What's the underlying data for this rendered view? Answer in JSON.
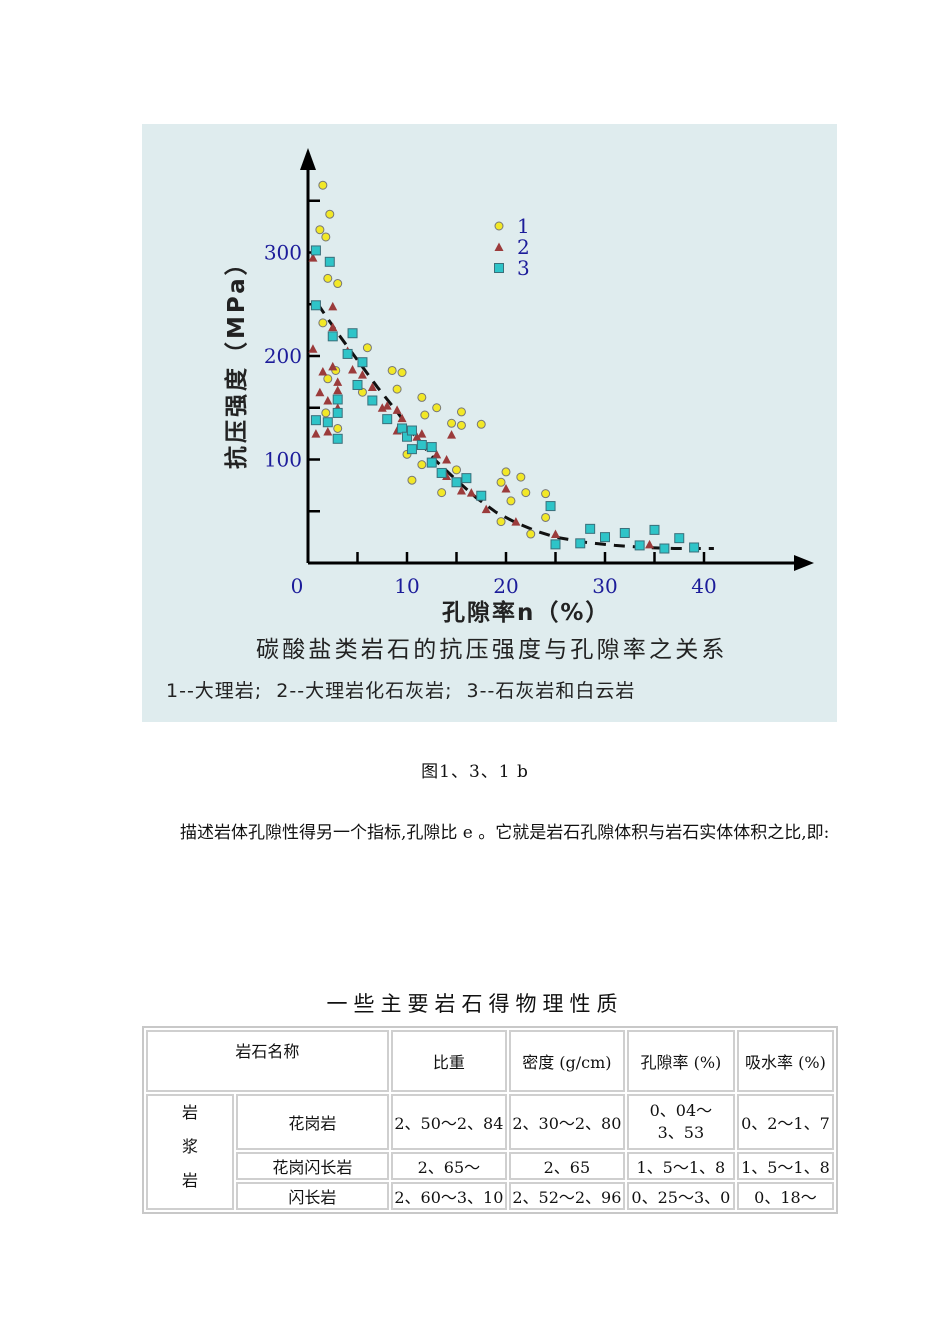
{
  "figure": {
    "y_axis_label": "抗压强度（MPa）",
    "x_axis_label": "孔隙率n（%）",
    "title": "碳酸盐类岩石的抗压强度与孔隙率之关系",
    "legend_caption": "1--大理岩;  2--大理岩化石灰岩;  3--石灰岩和白云岩",
    "legend": [
      {
        "label": "1",
        "marker": "circle",
        "color": "#f2e827"
      },
      {
        "label": "2",
        "marker": "triangle",
        "color": "#9b3b3b"
      },
      {
        "label": "3",
        "marker": "square",
        "color": "#2ec4c8"
      }
    ],
    "y_ticks": [
      "100",
      "200",
      "300"
    ],
    "x_ticks": [
      "0",
      "10",
      "20",
      "30",
      "40"
    ]
  },
  "chart_data": {
    "type": "scatter",
    "title": "碳酸盐类岩石的抗压强度与孔隙率之关系",
    "xlabel": "孔隙率n（%）",
    "ylabel": "抗压强度（MPa）",
    "xlim": [
      0,
      48
    ],
    "ylim": [
      0,
      380
    ],
    "x_ticks": [
      0,
      10,
      20,
      30,
      40
    ],
    "y_ticks": [
      100,
      200,
      300
    ],
    "grid": false,
    "legend_position": "upper-middle",
    "series": [
      {
        "name": "1 大理岩",
        "marker": "circle",
        "color": "#f2e827",
        "points": [
          [
            1.5,
            365
          ],
          [
            1.2,
            322
          ],
          [
            2.2,
            337
          ],
          [
            1.8,
            315
          ],
          [
            2.0,
            275
          ],
          [
            3.0,
            270
          ],
          [
            1.5,
            232
          ],
          [
            2.8,
            186
          ],
          [
            2.0,
            178
          ],
          [
            1.8,
            145
          ],
          [
            3.0,
            130
          ],
          [
            6.0,
            208
          ],
          [
            5.5,
            165
          ],
          [
            8.5,
            186
          ],
          [
            9.5,
            184
          ],
          [
            9.0,
            168
          ],
          [
            11.5,
            160
          ],
          [
            11.8,
            143
          ],
          [
            13,
            150
          ],
          [
            14.5,
            135
          ],
          [
            15.5,
            146
          ],
          [
            15.5,
            133
          ],
          [
            17.5,
            134
          ],
          [
            10,
            105
          ],
          [
            11.5,
            95
          ],
          [
            10.5,
            80
          ],
          [
            13.5,
            68
          ],
          [
            15,
            90
          ],
          [
            19.5,
            78
          ],
          [
            20,
            88
          ],
          [
            21.5,
            83
          ],
          [
            20.5,
            60
          ],
          [
            22,
            68
          ],
          [
            24,
            67
          ],
          [
            24,
            44
          ],
          [
            19.5,
            40
          ],
          [
            22.5,
            28
          ]
        ]
      },
      {
        "name": "2 大理岩化石灰岩",
        "marker": "triangle",
        "color": "#9b3b3b",
        "points": [
          [
            0.5,
            295
          ],
          [
            2.5,
            248
          ],
          [
            2.5,
            228
          ],
          [
            0.5,
            207
          ],
          [
            1.5,
            185
          ],
          [
            2.5,
            190
          ],
          [
            3,
            175
          ],
          [
            1.2,
            165
          ],
          [
            3,
            167
          ],
          [
            2,
            157
          ],
          [
            3,
            150
          ],
          [
            0.8,
            125
          ],
          [
            2,
            127
          ],
          [
            4,
            205
          ],
          [
            4.5,
            187
          ],
          [
            5.5,
            182
          ],
          [
            6.5,
            170
          ],
          [
            7.5,
            150
          ],
          [
            8,
            152
          ],
          [
            9,
            148
          ],
          [
            9.5,
            140
          ],
          [
            9,
            128
          ],
          [
            11,
            122
          ],
          [
            11.5,
            125
          ],
          [
            13,
            105
          ],
          [
            14,
            100
          ],
          [
            14.5,
            124
          ],
          [
            14,
            84
          ],
          [
            15.5,
            70
          ],
          [
            16.5,
            68
          ],
          [
            18,
            52
          ],
          [
            20,
            72
          ],
          [
            21,
            40
          ],
          [
            25,
            28
          ],
          [
            34.5,
            18
          ]
        ]
      },
      {
        "name": "3 石灰岩和白云岩",
        "marker": "square",
        "color": "#2ec4c8",
        "points": [
          [
            0.8,
            302
          ],
          [
            2.2,
            291
          ],
          [
            0.8,
            249
          ],
          [
            2.5,
            219
          ],
          [
            4.5,
            222
          ],
          [
            4,
            202
          ],
          [
            5.5,
            194
          ],
          [
            5,
            172
          ],
          [
            6.5,
            157
          ],
          [
            3,
            158
          ],
          [
            3,
            145
          ],
          [
            0.8,
            138
          ],
          [
            2,
            136
          ],
          [
            3,
            120
          ],
          [
            8,
            139
          ],
          [
            9.5,
            130
          ],
          [
            10,
            122
          ],
          [
            10.5,
            128
          ],
          [
            10.5,
            110
          ],
          [
            11.5,
            114
          ],
          [
            12.5,
            112
          ],
          [
            12.5,
            97
          ],
          [
            13.5,
            87
          ],
          [
            15,
            78
          ],
          [
            16,
            82
          ],
          [
            17.5,
            65
          ],
          [
            24.5,
            55
          ],
          [
            25,
            18
          ],
          [
            27.5,
            19
          ],
          [
            28.5,
            33
          ],
          [
            30,
            25
          ],
          [
            32,
            29
          ],
          [
            33.5,
            17
          ],
          [
            35,
            32
          ],
          [
            36,
            14
          ],
          [
            37.5,
            24
          ],
          [
            39,
            15
          ]
        ]
      },
      {
        "name": "trend",
        "type": "line",
        "style": "dashed",
        "color": "#111111",
        "points": [
          [
            1,
            250
          ],
          [
            3,
            222
          ],
          [
            5,
            196
          ],
          [
            7,
            170
          ],
          [
            9,
            146
          ],
          [
            11,
            120
          ],
          [
            13,
            98
          ],
          [
            15,
            80
          ],
          [
            17,
            63
          ],
          [
            19,
            49
          ],
          [
            21,
            39
          ],
          [
            23,
            31
          ],
          [
            25,
            25
          ],
          [
            28,
            20
          ],
          [
            31,
            17
          ],
          [
            34,
            15
          ],
          [
            37,
            14
          ],
          [
            41,
            14
          ]
        ]
      }
    ]
  },
  "figure_caption": "图1、3、1 b",
  "paragraph": "描述岩体孔隙性得另一个指标,孔隙比 e 。它就是岩石孔隙体积与岩石实体体积之比,即:",
  "table": {
    "title": "一些主要岩石得物理性质",
    "headers": {
      "name": "岩石名称",
      "specific_gravity": "比重",
      "density": "密度 (g/cm)",
      "porosity": "孔隙率 (%)",
      "absorption": "吸水率 (%)"
    },
    "group": "岩浆岩",
    "group_chars": [
      "岩",
      "浆",
      "岩"
    ],
    "rows": [
      {
        "name": "花岗岩",
        "specific_gravity": "2、50～2、84",
        "density": "2、30～2、80",
        "porosity": "0、04～3、53",
        "porosity_line1": "0、04～",
        "porosity_line2": "3、53",
        "absorption": "0、2～1、7"
      },
      {
        "name": "花岗闪长岩",
        "specific_gravity": "2、65～",
        "density": "2、65",
        "porosity": "1、5～1、8",
        "absorption": "1、5～1、8"
      },
      {
        "name": "闪长岩",
        "specific_gravity": "2、60～3、10",
        "density": "2、52～2、96",
        "porosity": "0、25～3、0",
        "absorption": "0、18～"
      }
    ]
  }
}
